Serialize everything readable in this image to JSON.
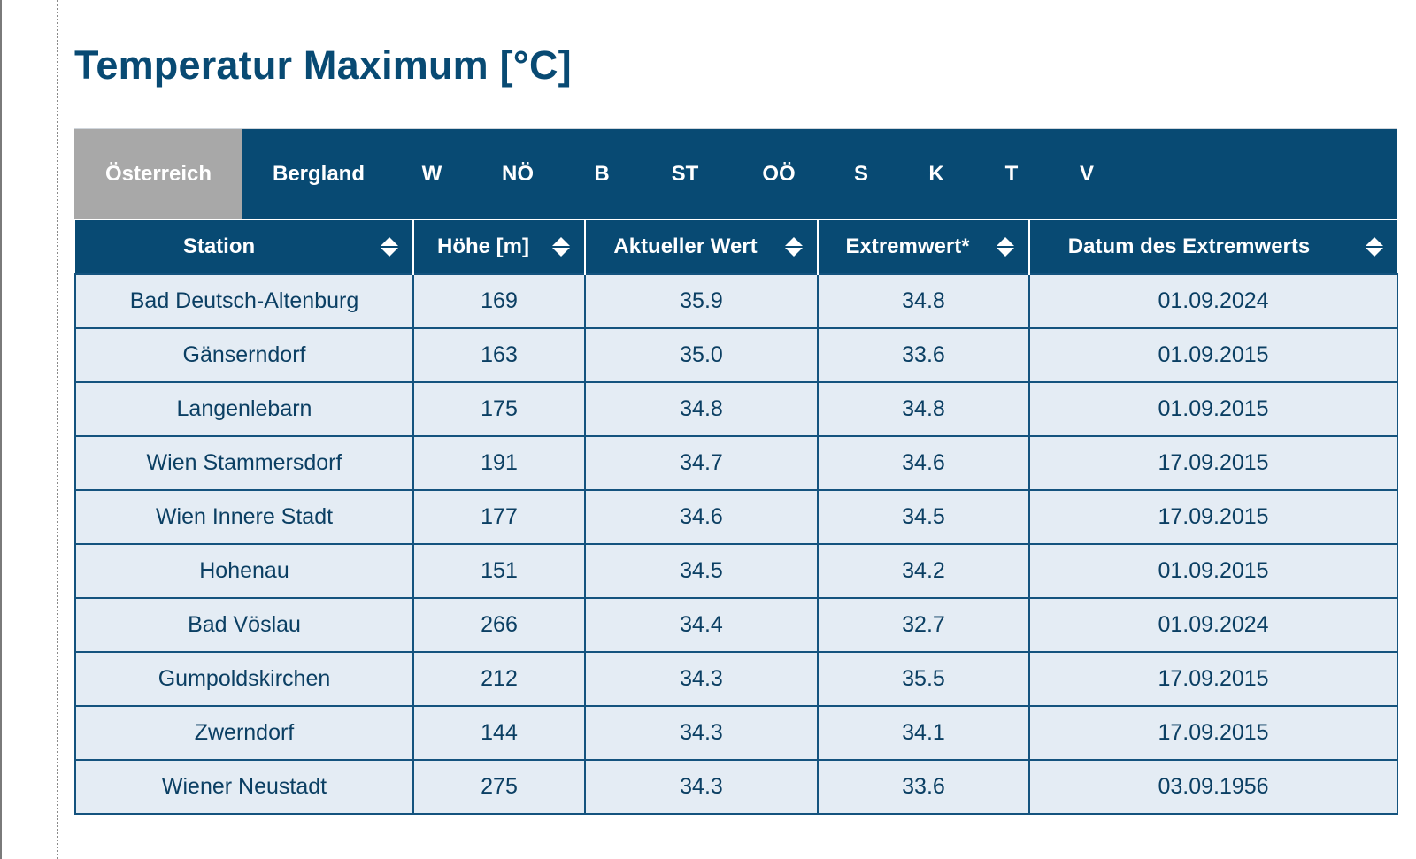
{
  "page": {
    "title": "Temperatur Maximum [°C]"
  },
  "colors": {
    "primary": "#084a73",
    "active_tab": "#a8a8a8",
    "row_background": "#e4ecf4",
    "cell_text": "#0b3f63"
  },
  "region_tabs": [
    {
      "label": "Österreich",
      "active": true
    },
    {
      "label": "Bergland",
      "active": false
    },
    {
      "label": "W",
      "active": false
    },
    {
      "label": "NÖ",
      "active": false
    },
    {
      "label": "B",
      "active": false
    },
    {
      "label": "ST",
      "active": false
    },
    {
      "label": "OÖ",
      "active": false
    },
    {
      "label": "S",
      "active": false
    },
    {
      "label": "K",
      "active": false
    },
    {
      "label": "T",
      "active": false
    },
    {
      "label": "V",
      "active": false
    }
  ],
  "table": {
    "columns": [
      {
        "label": "Station",
        "sort_icon": "sort-icon"
      },
      {
        "label": "Höhe [m]",
        "sort_icon": "sort-icon"
      },
      {
        "label": "Aktueller Wert",
        "sort_icon": "sort-icon"
      },
      {
        "label": "Extremwert*",
        "sort_icon": "sort-icon"
      },
      {
        "label": "Datum des Extremwerts",
        "sort_icon": "sort-icon"
      }
    ],
    "rows": [
      [
        "Bad Deutsch-Altenburg",
        "169",
        "35.9",
        "34.8",
        "01.09.2024"
      ],
      [
        "Gänserndorf",
        "163",
        "35.0",
        "33.6",
        "01.09.2015"
      ],
      [
        "Langenlebarn",
        "175",
        "34.8",
        "34.8",
        "01.09.2015"
      ],
      [
        "Wien Stammersdorf",
        "191",
        "34.7",
        "34.6",
        "17.09.2015"
      ],
      [
        "Wien Innere Stadt",
        "177",
        "34.6",
        "34.5",
        "17.09.2015"
      ],
      [
        "Hohenau",
        "151",
        "34.5",
        "34.2",
        "01.09.2015"
      ],
      [
        "Bad Vöslau",
        "266",
        "34.4",
        "32.7",
        "01.09.2024"
      ],
      [
        "Gumpoldskirchen",
        "212",
        "34.3",
        "35.5",
        "17.09.2015"
      ],
      [
        "Zwerndorf",
        "144",
        "34.3",
        "34.1",
        "17.09.2015"
      ],
      [
        "Wiener Neustadt",
        "275",
        "34.3",
        "33.6",
        "03.09.1956"
      ]
    ]
  }
}
